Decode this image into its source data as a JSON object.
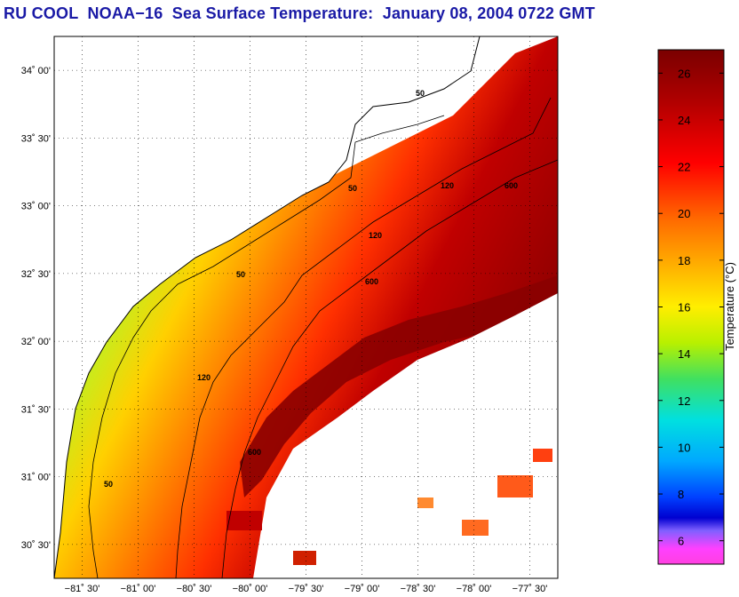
{
  "title": "RU COOL  NOAA−16  Sea Surface Temperature:  January 08, 2004 0722 GMT",
  "map": {
    "lon_range": [
      -81.75,
      -77.25
    ],
    "lat_range": [
      30.25,
      34.25
    ],
    "lat_ticks": [
      "34˚ 00'",
      "33˚ 30'",
      "33˚ 00'",
      "32˚ 30'",
      "32˚ 00'",
      "31˚ 30'",
      "31˚ 00'",
      "30˚ 30'"
    ],
    "lon_ticks": [
      "−81˚ 30'",
      "−81˚ 00'",
      "−80˚ 30'",
      "−80˚ 00'",
      "−79˚ 30'",
      "−79˚ 00'",
      "−78˚ 30'",
      "−78˚ 00'",
      "−77˚ 30'"
    ],
    "contours": [
      {
        "depth": "50",
        "color": "#000000"
      },
      {
        "depth": "120",
        "color": "#000000"
      },
      {
        "depth": "600",
        "color": "#000000"
      }
    ]
  },
  "colorbar": {
    "title": "Temperature (°C)",
    "min": 5,
    "max": 27,
    "ticks": [
      "6",
      "8",
      "10",
      "12",
      "14",
      "16",
      "18",
      "20",
      "22",
      "24",
      "26"
    ]
  }
}
